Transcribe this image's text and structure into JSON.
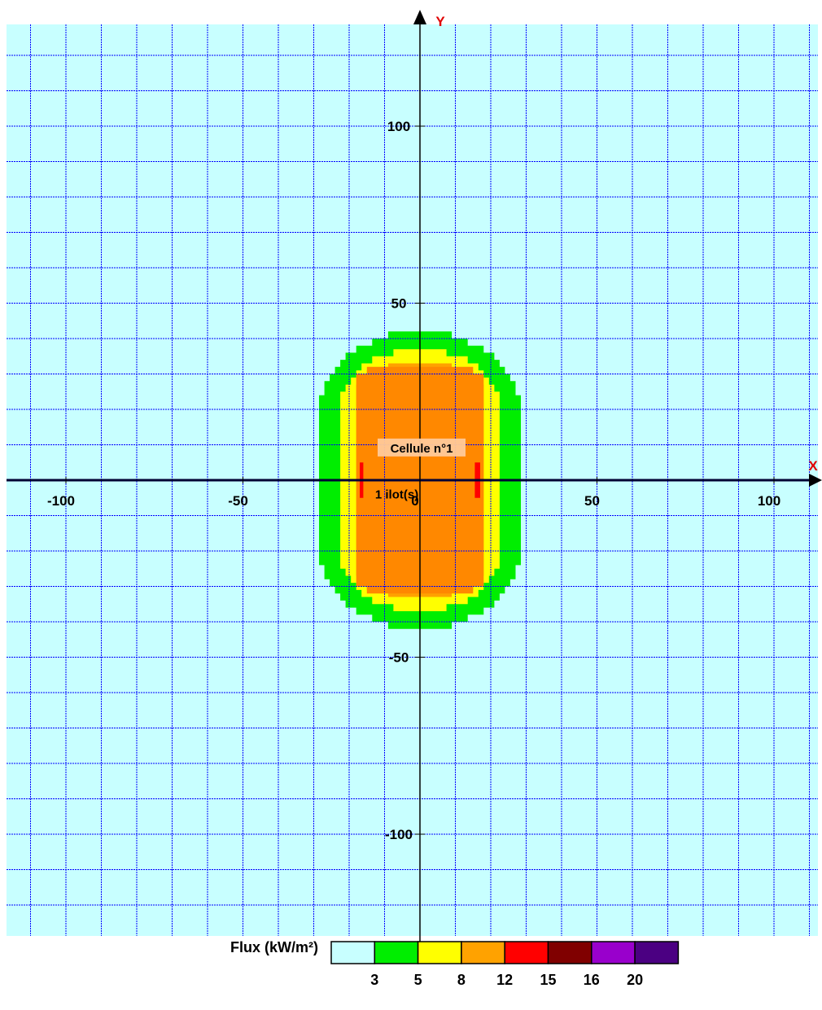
{
  "chart_data": {
    "type": "heatmap",
    "title": "",
    "xlabel": "X",
    "ylabel": "Y",
    "xlim": [
      -117,
      117
    ],
    "ylim": [
      -133,
      135
    ],
    "grid": true,
    "grid_step": 10,
    "x_ticks": [
      -100,
      -50,
      0,
      50,
      100
    ],
    "y_ticks": [
      100,
      50,
      -50,
      -100
    ],
    "x_tick_labels": [
      "-100",
      "-50",
      "0",
      "50",
      "100"
    ],
    "y_tick_labels": [
      "100",
      "50",
      "-50",
      "-100"
    ],
    "background_color": "#c8ffff",
    "grid_color": "#0000ff",
    "zones": [
      {
        "threshold": 3,
        "color": "#00ee00",
        "half_width": 29,
        "half_height": 42,
        "flat": 18
      },
      {
        "threshold": 5,
        "color": "#ffff00",
        "half_width": 22,
        "half_height": 37,
        "flat": 22
      },
      {
        "threshold": 8,
        "color": "#ffa200",
        "half_width": 17.5,
        "half_height": 33,
        "flat": 26
      },
      {
        "threshold": 12,
        "color": "#ff8800",
        "half_width": 17.5,
        "half_height": 32,
        "flat": 30
      }
    ],
    "hot_spots": [
      {
        "x": [
          -17,
          -16
        ],
        "y": [
          -5,
          5
        ],
        "color": "#ff0000"
      },
      {
        "x": [
          15.5,
          17
        ],
        "y": [
          -5,
          5
        ],
        "color": "#ff0000"
      }
    ],
    "annotations": [
      {
        "text": "Cellule n°1",
        "x": 0,
        "y": 9
      },
      {
        "text": "1 ilot(s)",
        "x": -7,
        "y": -4
      }
    ],
    "legend": {
      "title": "Flux (kW/m²)",
      "placement": "bottom",
      "colors": [
        "#c8ffff",
        "#00ee00",
        "#ffff00",
        "#ffa200",
        "#ff0000",
        "#800000",
        "#9900cc",
        "#4b0082"
      ],
      "labels": [
        "3",
        "5",
        "8",
        "12",
        "15",
        "16",
        "20"
      ]
    }
  }
}
